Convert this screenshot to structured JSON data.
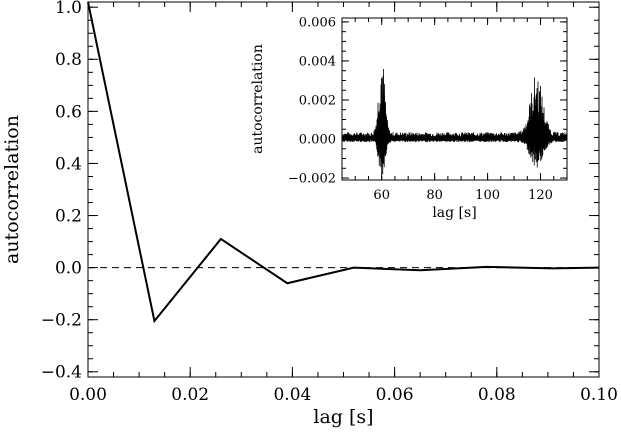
{
  "chart_data": [
    {
      "type": "line",
      "xlabel": "lag [s]",
      "ylabel": "autocorrelation",
      "xlim": [
        0.0,
        0.1
      ],
      "ylim": [
        -0.42,
        1.02
      ],
      "xticks": [
        0.0,
        0.02,
        0.04,
        0.06,
        0.08,
        0.1
      ],
      "xtick_labels": [
        "0.00",
        "0.02",
        "0.04",
        "0.06",
        "0.08",
        "0.10"
      ],
      "yticks": [
        -0.4,
        -0.2,
        0.0,
        0.2,
        0.4,
        0.6,
        0.8,
        1.0
      ],
      "ytick_labels": [
        "−0.4",
        "−0.2",
        "0.0",
        "0.2",
        "0.4",
        "0.6",
        "0.8",
        "1.0"
      ],
      "reference_line": {
        "y": 0.0,
        "style": "dashed"
      },
      "grid": false,
      "series": [
        {
          "x": [
            0.0,
            0.013,
            0.026,
            0.039,
            0.052,
            0.065,
            0.078,
            0.091,
            0.1
          ],
          "y": [
            1.02,
            -0.205,
            0.11,
            -0.06,
            0.0,
            -0.01,
            0.003,
            -0.003,
            0.0
          ]
        }
      ]
    },
    {
      "type": "line",
      "inset": true,
      "xlabel": "lag [s]",
      "ylabel": "autocorrelation",
      "xlim": [
        45,
        130
      ],
      "ylim": [
        -0.0021,
        0.0062
      ],
      "xticks": [
        60,
        80,
        100,
        120
      ],
      "xtick_labels": [
        "60",
        "80",
        "100",
        "120"
      ],
      "yticks": [
        -0.002,
        0.0,
        0.002,
        0.004,
        0.006
      ],
      "ytick_labels": [
        "−0.002",
        "0.000",
        "0.002",
        "0.004",
        "0.006"
      ],
      "grid": false,
      "series": [
        {
          "noise_amplitude": 0.00035,
          "peaks": [
            {
              "x": 60,
              "y": 0.0045
            },
            {
              "x": 118.5,
              "y": 0.0034
            }
          ]
        }
      ]
    }
  ]
}
